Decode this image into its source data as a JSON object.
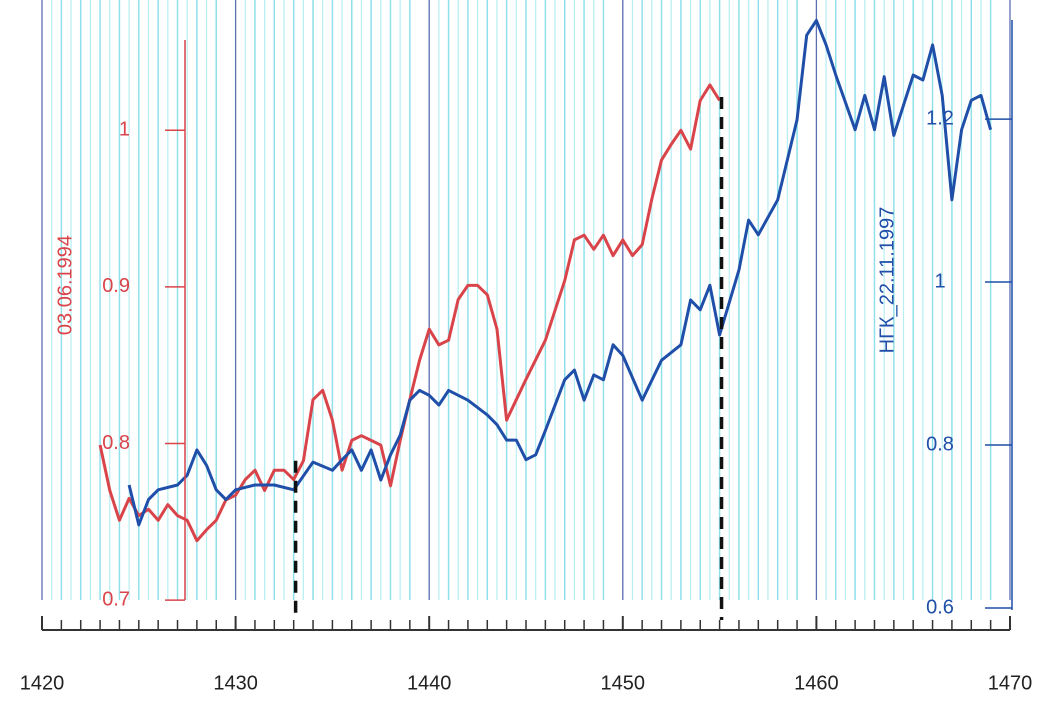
{
  "chart_data": {
    "type": "line",
    "xlabel_left": "03.06.1994",
    "ylabel": "03.06.1994",
    "y2label": "НГК_22.11.1997",
    "xlim": [
      1420,
      1470
    ],
    "xticks": [
      1420,
      1430,
      1440,
      1450,
      1460,
      1470
    ],
    "xminorticks": [
      1421,
      1422,
      1423,
      1424,
      1425,
      1426,
      1427,
      1428,
      1429,
      1431,
      1432,
      1433,
      1434,
      1435,
      1436,
      1437,
      1438,
      1439,
      1441,
      1442,
      1443,
      1444,
      1445,
      1446,
      1447,
      1448,
      1449,
      1451,
      1452,
      1453,
      1454,
      1455,
      1456,
      1457,
      1458,
      1459,
      1461,
      1462,
      1463,
      1464,
      1465,
      1466,
      1467,
      1468,
      1469
    ],
    "ylim": [
      0.695,
      1.08
    ],
    "yticks": [
      0.7,
      0.8,
      0.9,
      1
    ],
    "y2lim": [
      0.6,
      1.34
    ],
    "y2ticks": [
      0.6,
      0.8,
      1,
      1.2
    ],
    "vlines": [
      1433.1,
      1455.1
    ],
    "grid": true,
    "series": [
      {
        "name": "03.06.1994",
        "color": "#d9444a",
        "x": [
          1423,
          1423.5,
          1424,
          1424.5,
          1425,
          1425.5,
          1426,
          1426.5,
          1427,
          1427.5,
          1428,
          1428.5,
          1429,
          1429.5,
          1430,
          1430.5,
          1431,
          1431.5,
          1432,
          1432.5,
          1433,
          1433.5,
          1434,
          1434.5,
          1435,
          1435.5,
          1436,
          1436.5,
          1437,
          1437.5,
          1438,
          1438.5,
          1439,
          1439.5,
          1440,
          1440.5,
          1441,
          1441.5,
          1442,
          1442.5,
          1443,
          1443.5,
          1444,
          1444.5,
          1445,
          1446,
          1446.5,
          1447,
          1447.5,
          1448,
          1448.5,
          1449,
          1449.5,
          1450,
          1450.5,
          1451,
          1451.5,
          1452,
          1452.5,
          1453,
          1453.5,
          1454,
          1454.5,
          1455
        ],
        "values": [
          0.799,
          0.77,
          0.751,
          0.765,
          0.754,
          0.758,
          0.751,
          0.761,
          0.754,
          0.751,
          0.738,
          0.745,
          0.751,
          0.764,
          0.767,
          0.777,
          0.783,
          0.77,
          0.783,
          0.783,
          0.777,
          0.789,
          0.828,
          0.834,
          0.815,
          0.783,
          0.802,
          0.805,
          0.802,
          0.799,
          0.773,
          0.802,
          0.828,
          0.853,
          0.873,
          0.863,
          0.866,
          0.892,
          0.901,
          0.901,
          0.895,
          0.873,
          0.815,
          0.828,
          0.841,
          0.866,
          0.885,
          0.904,
          0.93,
          0.933,
          0.924,
          0.933,
          0.92,
          0.93,
          0.92,
          0.927,
          0.956,
          0.981,
          0.991,
          1.0,
          0.988,
          1.019,
          1.029,
          1.019
        ]
      },
      {
        "name": "НГК_22.11.1997",
        "color": "#1f4fa8",
        "axis": "y2",
        "x": [
          1424.5,
          1425,
          1425.5,
          1426,
          1427,
          1427.5,
          1428,
          1428.5,
          1429,
          1429.5,
          1430,
          1431,
          1432,
          1433,
          1434,
          1435,
          1435.5,
          1436,
          1436.5,
          1437,
          1437.5,
          1438,
          1438.5,
          1439,
          1439.5,
          1440,
          1440.5,
          1441,
          1442,
          1443,
          1443.5,
          1444,
          1444.5,
          1445,
          1445.5,
          1446,
          1447,
          1447.5,
          1448,
          1448.5,
          1449,
          1449.5,
          1450,
          1451,
          1452,
          1453,
          1453.5,
          1454,
          1454.5,
          1455,
          1456,
          1456.5,
          1457,
          1458,
          1459,
          1459.5,
          1460,
          1460.5,
          1461,
          1462,
          1462.5,
          1463,
          1463.5,
          1464,
          1465,
          1465.5,
          1466,
          1466.5,
          1467,
          1467.5,
          1468,
          1468.5,
          1469
        ],
        "values": [
          0.751,
          0.702,
          0.733,
          0.745,
          0.751,
          0.763,
          0.794,
          0.775,
          0.745,
          0.733,
          0.745,
          0.751,
          0.751,
          0.745,
          0.779,
          0.769,
          0.782,
          0.794,
          0.769,
          0.794,
          0.757,
          0.788,
          0.812,
          0.855,
          0.867,
          0.861,
          0.849,
          0.867,
          0.855,
          0.837,
          0.825,
          0.806,
          0.806,
          0.782,
          0.788,
          0.818,
          0.88,
          0.892,
          0.855,
          0.886,
          0.88,
          0.923,
          0.91,
          0.855,
          0.904,
          0.923,
          0.978,
          0.966,
          0.996,
          0.935,
          1.015,
          1.076,
          1.058,
          1.101,
          1.199,
          1.303,
          1.321,
          1.291,
          1.254,
          1.187,
          1.229,
          1.187,
          1.252,
          1.18,
          1.254,
          1.248,
          1.291,
          1.229,
          1.101,
          1.187,
          1.223,
          1.229,
          1.187
        ]
      }
    ]
  }
}
